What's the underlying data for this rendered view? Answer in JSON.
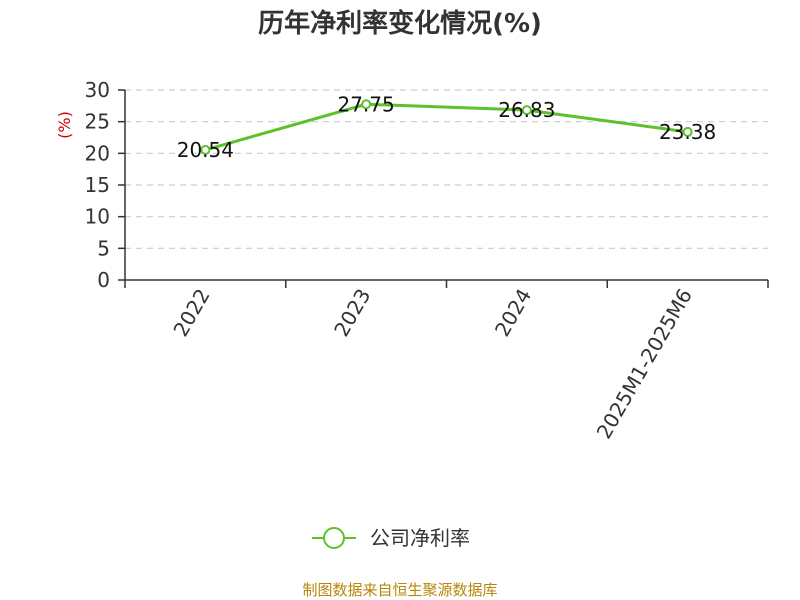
{
  "chart_data": {
    "type": "line",
    "title": "历年净利率变化情况(%)",
    "ylabel": "(%)",
    "xlabel": "",
    "categories": [
      "2022",
      "2023",
      "2024",
      "2025M1-2025M6"
    ],
    "series": [
      {
        "name": "公司净利率",
        "values": [
          20.54,
          27.75,
          26.83,
          23.38
        ],
        "color": "#5cc12a"
      }
    ],
    "data_labels": [
      "20.54",
      "27.75",
      "26.83",
      "23.38"
    ],
    "y_ticks": [
      "0",
      "5",
      "10",
      "15",
      "20",
      "25",
      "30"
    ],
    "ylim": [
      0,
      30
    ],
    "grid": "horizontal-dashed",
    "legend_position": "bottom-center"
  },
  "source_text": "制图数据来自恒生聚源数据库",
  "colors": {
    "line": "#5cc12a",
    "ylabel": "#cc0000",
    "source": "#b8860b",
    "grid": "#cccccc",
    "axis": "#333333"
  }
}
